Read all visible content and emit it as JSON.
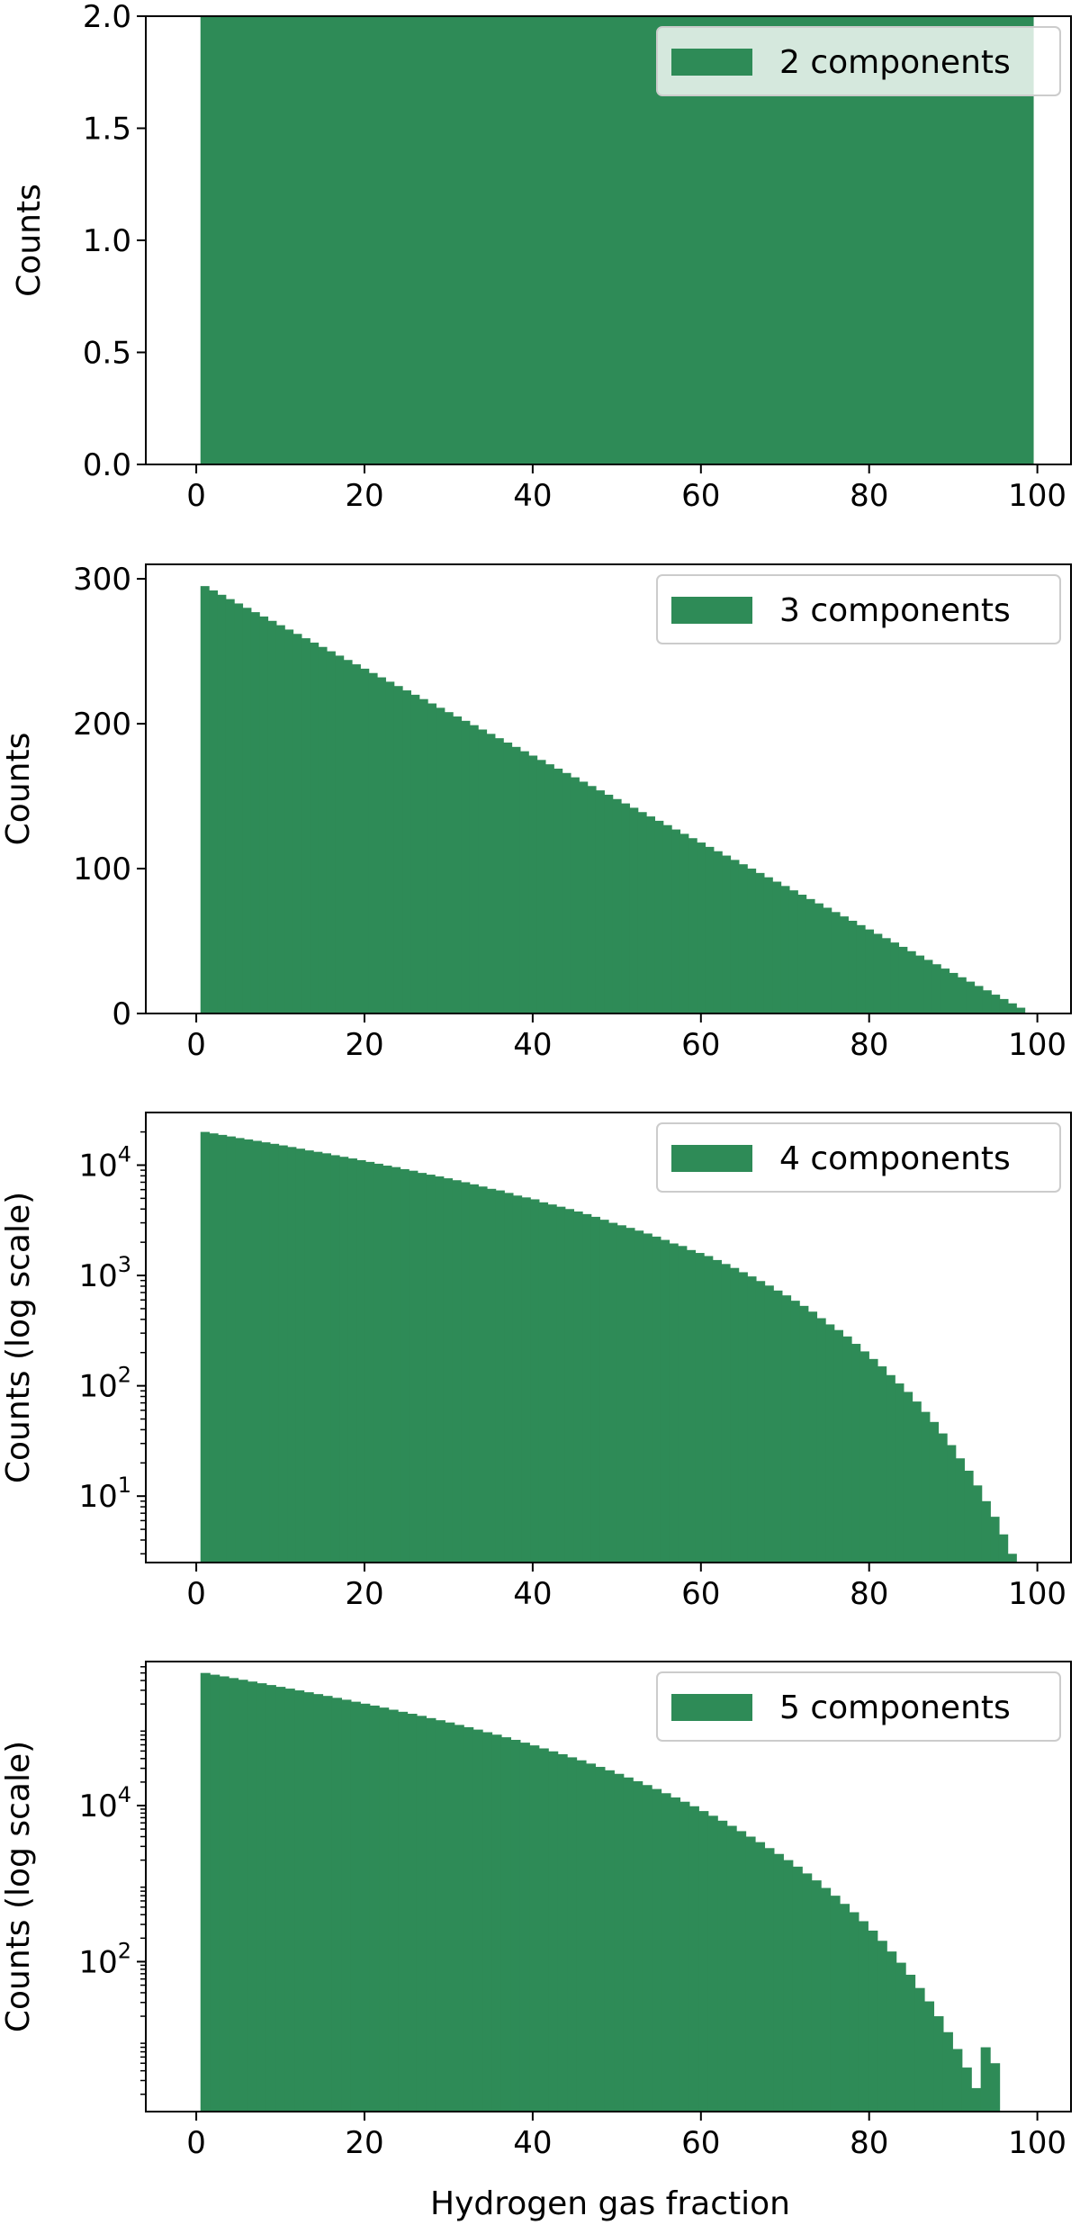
{
  "figure": {
    "bar_color": "#2e8b57",
    "xlabel": "Hydrogen gas fraction"
  },
  "chart_data": [
    {
      "type": "bar",
      "title": "",
      "xlabel": "",
      "ylabel": "Counts",
      "log_y": false,
      "xlim": [
        -6,
        104
      ],
      "ylim": [
        0,
        2.0
      ],
      "xticks": [
        "0",
        "20",
        "40",
        "60",
        "80",
        "100"
      ],
      "yticks": [
        "0.0",
        "0.5",
        "1.0",
        "1.5",
        "2.0"
      ],
      "legend": "2 components",
      "legend_position": "top-right",
      "bin_range": [
        0.5,
        99.5
      ],
      "values": [
        2
      ]
    },
    {
      "type": "bar",
      "title": "",
      "xlabel": "",
      "ylabel": "Counts",
      "log_y": false,
      "xlim": [
        -6,
        104
      ],
      "ylim": [
        0,
        310
      ],
      "xticks": [
        "0",
        "20",
        "40",
        "60",
        "80",
        "100"
      ],
      "yticks": [
        "0",
        "100",
        "200",
        "300"
      ],
      "legend": "3 components",
      "legend_position": "top-right",
      "bin_range": [
        0.5,
        98.5
      ],
      "values": [
        295,
        292,
        289,
        286,
        283,
        280,
        277,
        274,
        271,
        268,
        265,
        262,
        259,
        256,
        253,
        250,
        247,
        244,
        241,
        238,
        235,
        232,
        229,
        226,
        223,
        220,
        217,
        214,
        211,
        208,
        205,
        202,
        199,
        196,
        193,
        190,
        187,
        184,
        181,
        178,
        175,
        172,
        169,
        166,
        163,
        160,
        157,
        154,
        151,
        148,
        145,
        142,
        139,
        136,
        133,
        130,
        127,
        124,
        121,
        118,
        115,
        112,
        109,
        106,
        103,
        100,
        97,
        94,
        91,
        88,
        85,
        82,
        79,
        76,
        73,
        70,
        67,
        64,
        61,
        58,
        55,
        52,
        49,
        46,
        43,
        40,
        37,
        34,
        31,
        28,
        25,
        22,
        19,
        16,
        13,
        10,
        7,
        4
      ]
    },
    {
      "type": "bar",
      "title": "",
      "xlabel": "",
      "ylabel": "Counts (log scale)",
      "log_y": true,
      "xlim": [
        -6,
        104
      ],
      "ylim": [
        2.5,
        30000
      ],
      "xticks": [
        "0",
        "20",
        "40",
        "60",
        "80",
        "100"
      ],
      "yticks": [
        {
          "base": "10",
          "exp": "1",
          "value": 10
        },
        {
          "base": "10",
          "exp": "2",
          "value": 100
        },
        {
          "base": "10",
          "exp": "3",
          "value": 1000
        },
        {
          "base": "10",
          "exp": "4",
          "value": 10000
        }
      ],
      "legend": "4 components",
      "legend_position": "top-right",
      "bin_range": [
        0.5,
        97.5
      ],
      "values": [
        20000,
        19400,
        18800,
        18200,
        17600,
        17100,
        16600,
        16100,
        15600,
        15100,
        14600,
        14100,
        13600,
        13200,
        12800,
        12300,
        11900,
        11500,
        11100,
        10700,
        10300,
        9900,
        9600,
        9200,
        8900,
        8500,
        8200,
        7900,
        7600,
        7300,
        7000,
        6700,
        6400,
        6100,
        5900,
        5600,
        5300,
        5100,
        4900,
        4600,
        4400,
        4200,
        4000,
        3800,
        3600,
        3400,
        3200,
        3000,
        2850,
        2700,
        2550,
        2400,
        2250,
        2100,
        1950,
        1850,
        1700,
        1600,
        1500,
        1380,
        1270,
        1170,
        1070,
        980,
        890,
        810,
        730,
        660,
        590,
        530,
        470,
        410,
        360,
        320,
        280,
        240,
        205,
        175,
        150,
        125,
        105,
        88,
        72,
        58,
        47,
        37,
        29,
        22,
        17,
        12.5,
        9,
        6.5,
        4.5,
        3
      ]
    },
    {
      "type": "bar",
      "title": "",
      "xlabel": "Hydrogen gas fraction",
      "ylabel": "Counts (log scale)",
      "log_y": true,
      "xlim": [
        -6,
        104
      ],
      "ylim": [
        1.2,
        700000
      ],
      "xticks": [
        "0",
        "20",
        "40",
        "60",
        "80",
        "100"
      ],
      "yticks": [
        {
          "base": "10",
          "exp": "2",
          "value": 100
        },
        {
          "base": "10",
          "exp": "4",
          "value": 10000
        }
      ],
      "legend": "5 components",
      "legend_position": "top-right",
      "bin_range": [
        0.5,
        95.5
      ],
      "values": [
        500000,
        475000,
        452000,
        430000,
        409000,
        388000,
        369000,
        350000,
        332000,
        315000,
        299000,
        283000,
        268000,
        254000,
        240000,
        227000,
        214000,
        202000,
        191000,
        180000,
        169000,
        159000,
        150000,
        141000,
        132000,
        124000,
        116000,
        108000,
        101000,
        94000,
        87000,
        81000,
        75000,
        69500,
        64000,
        59000,
        54000,
        49500,
        45500,
        41500,
        38000,
        34500,
        31300,
        28300,
        25500,
        22900,
        20500,
        18300,
        16300,
        14400,
        12700,
        11200,
        9800,
        8500,
        7400,
        6400,
        5500,
        4700,
        4000,
        3400,
        2850,
        2400,
        2000,
        1650,
        1350,
        1100,
        880,
        700,
        550,
        430,
        330,
        250,
        185,
        135,
        97,
        68,
        46,
        31,
        20,
        12.5,
        7.6,
        4.4,
        2.4,
        8,
        5
      ]
    }
  ]
}
